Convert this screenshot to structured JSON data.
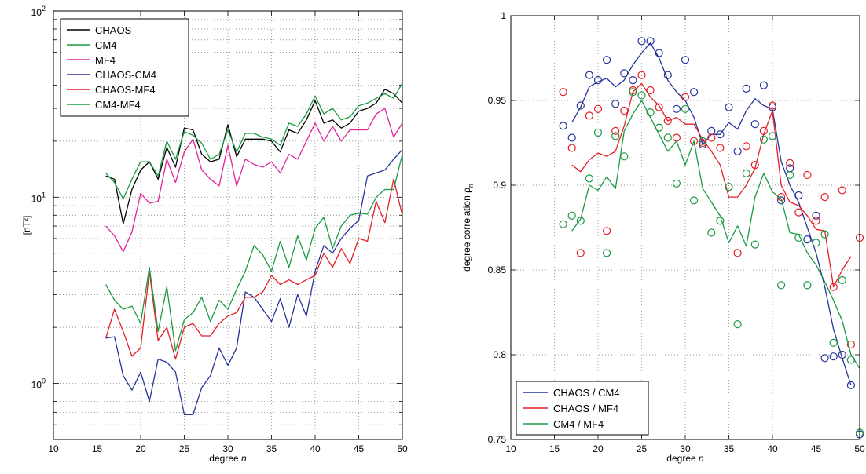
{
  "chart_data": [
    {
      "type": "line",
      "xlabel_prefix": "degree ",
      "xlabel_var": "n",
      "ylabel": "[nT²]",
      "y_scale": "log",
      "xlim": [
        10,
        50
      ],
      "ylim": [
        0.5,
        100
      ],
      "x_ticks": [
        10,
        15,
        20,
        25,
        30,
        35,
        40,
        45,
        50
      ],
      "y_tick_labels": [
        {
          "value": 1,
          "base": "10",
          "exp": "0"
        },
        {
          "value": 10,
          "base": "10",
          "exp": "1"
        },
        {
          "value": 100,
          "base": "10",
          "exp": "2"
        }
      ],
      "grid": true,
      "legend_position": "top-left",
      "x": [
        16,
        17,
        18,
        19,
        20,
        21,
        22,
        23,
        24,
        25,
        26,
        27,
        28,
        29,
        30,
        31,
        32,
        33,
        34,
        35,
        36,
        37,
        38,
        39,
        40,
        41,
        42,
        43,
        44,
        45,
        46,
        47,
        48,
        49,
        50
      ],
      "series": [
        {
          "name": "CHAOS",
          "color": "#000000",
          "values": [
            13,
            12.5,
            7.2,
            11,
            14,
            15.5,
            12.5,
            18.5,
            14.5,
            23.5,
            23,
            17,
            15.5,
            16,
            24.5,
            16.5,
            20.5,
            20.5,
            20.5,
            20,
            17.5,
            23,
            22,
            26,
            33,
            25,
            26,
            23.5,
            25,
            29,
            30,
            32,
            38,
            36,
            32
          ]
        },
        {
          "name": "CM4",
          "color": "#1a9a41",
          "values": [
            13.5,
            12,
            9.8,
            12.5,
            15.5,
            15.5,
            13,
            20,
            16,
            22.5,
            21.5,
            19.5,
            16,
            17,
            23,
            17.5,
            22,
            22,
            21,
            20.5,
            19,
            25,
            24,
            28,
            35,
            28,
            30,
            26,
            27,
            31,
            32,
            34,
            36,
            34,
            41
          ]
        },
        {
          "name": "MF4",
          "color": "#e0239a",
          "values": [
            7,
            6.2,
            5.1,
            6.5,
            10.5,
            9.3,
            9.5,
            16,
            12,
            17.5,
            20.5,
            14,
            12.5,
            11.5,
            19,
            11.5,
            16,
            15,
            14.5,
            15.5,
            13.5,
            17,
            16,
            20,
            25,
            20,
            24,
            20,
            23,
            23,
            23,
            28,
            30,
            21,
            25
          ]
        },
        {
          "name": "CHAOS-CM4",
          "color": "#27339a",
          "values": [
            1.75,
            1.78,
            1.1,
            0.92,
            1.15,
            0.8,
            1.35,
            1.3,
            1.15,
            0.68,
            0.68,
            0.95,
            1.1,
            1.55,
            1.25,
            1.55,
            3.1,
            2.9,
            2.5,
            2.15,
            2.85,
            2,
            3,
            2.3,
            4,
            5.5,
            5,
            6,
            6.8,
            7.5,
            13,
            13.5,
            14,
            16,
            18
          ]
        },
        {
          "name": "CHAOS-MF4",
          "color": "#e41f26",
          "values": [
            1.75,
            2.5,
            1.9,
            1.4,
            1.55,
            4,
            1.7,
            2,
            1.35,
            2,
            2.1,
            1.8,
            1.8,
            2.1,
            2.3,
            2.4,
            2.9,
            2.9,
            3.1,
            3.8,
            3.4,
            3.6,
            3.4,
            3.6,
            3.8,
            5,
            4.2,
            5.3,
            4.4,
            6,
            5.8,
            9.5,
            7.3,
            12.5,
            8
          ]
        },
        {
          "name": "CM4-MF4",
          "color": "#1a9a41",
          "values": [
            3.4,
            2.8,
            2.5,
            2.6,
            2.1,
            4.2,
            1.9,
            3.3,
            1.5,
            2.2,
            2.4,
            2.9,
            2.15,
            2.8,
            2.5,
            3.2,
            4,
            5.5,
            4.9,
            4,
            5.8,
            4.2,
            6.2,
            4.6,
            6.8,
            7.8,
            5.3,
            7,
            8,
            8.2,
            8.1,
            10,
            11,
            11,
            17
          ]
        }
      ]
    },
    {
      "type": "line",
      "xlabel_prefix": "degree ",
      "xlabel_var": "n",
      "ylabel": "degree correlation ρn",
      "ylabel_main": "degree correlation ρ",
      "ylabel_sub": "n",
      "xlim": [
        10,
        50
      ],
      "ylim": [
        0.75,
        1
      ],
      "x_ticks": [
        10,
        15,
        20,
        25,
        30,
        35,
        40,
        45,
        50
      ],
      "y_ticks": [
        "0.75",
        "0.8",
        "0.85",
        "0.9",
        "0.95",
        "1"
      ],
      "grid": true,
      "legend_position": "bottom-left",
      "series": [
        {
          "name": "CHAOS / CM4",
          "color": "#27339a",
          "x": [
            17,
            18,
            19,
            20,
            21,
            22,
            23,
            24,
            25,
            26,
            27,
            28,
            29,
            30,
            31,
            32,
            33,
            34,
            35,
            36,
            37,
            38,
            39,
            40,
            41,
            42,
            43,
            44,
            45,
            46,
            47,
            48,
            49
          ],
          "line": [
            0.937,
            0.946,
            0.958,
            0.961,
            0.963,
            0.958,
            0.962,
            0.971,
            0.978,
            0.984,
            0.975,
            0.962,
            0.955,
            0.95,
            0.94,
            0.924,
            0.93,
            0.93,
            0.937,
            0.933,
            0.944,
            0.951,
            0.947,
            0.945,
            0.914,
            0.9,
            0.89,
            0.875,
            0.86,
            0.84,
            0.815,
            0.798,
            0.782
          ],
          "markers_x": [
            16,
            17,
            18,
            19,
            20,
            21,
            22,
            23,
            24,
            25,
            26,
            27,
            28,
            29,
            30,
            31,
            32,
            33,
            34,
            35,
            36,
            37,
            38,
            39,
            40,
            41,
            42,
            43,
            44,
            45,
            46,
            47,
            48,
            49,
            50
          ],
          "markers": [
            0.935,
            0.928,
            0.947,
            0.965,
            0.962,
            0.974,
            0.948,
            0.966,
            0.962,
            0.985,
            0.985,
            0.978,
            0.965,
            0.945,
            0.974,
            0.955,
            0.924,
            0.932,
            0.93,
            0.946,
            0.92,
            0.957,
            0.936,
            0.959,
            0.946,
            0.891,
            0.91,
            0.894,
            0.868,
            0.882,
            0.798,
            0.799,
            0.8,
            0.782,
            0.753
          ]
        },
        {
          "name": "CHAOS / MF4",
          "color": "#e41f26",
          "x": [
            17,
            18,
            19,
            20,
            21,
            22,
            23,
            24,
            25,
            26,
            27,
            28,
            29,
            30,
            31,
            32,
            33,
            34,
            35,
            36,
            37,
            38,
            39,
            40,
            41,
            42,
            43,
            44,
            45,
            46,
            47,
            48,
            49
          ],
          "line": [
            0.912,
            0.908,
            0.915,
            0.919,
            0.917,
            0.92,
            0.935,
            0.955,
            0.96,
            0.952,
            0.947,
            0.938,
            0.94,
            0.936,
            0.936,
            0.927,
            0.92,
            0.912,
            0.893,
            0.893,
            0.9,
            0.91,
            0.93,
            0.944,
            0.9,
            0.89,
            0.888,
            0.882,
            0.874,
            0.873,
            0.84,
            0.85,
            0.858
          ],
          "markers_x": [
            16,
            17,
            18,
            19,
            20,
            21,
            22,
            23,
            24,
            25,
            26,
            27,
            28,
            29,
            30,
            31,
            32,
            33,
            34,
            35,
            36,
            37,
            38,
            39,
            40,
            41,
            42,
            43,
            44,
            45,
            46,
            47,
            48,
            49,
            50
          ],
          "markers": [
            0.955,
            0.922,
            0.86,
            0.941,
            0.945,
            0.873,
            0.932,
            0.944,
            0.956,
            0.965,
            0.956,
            0.946,
            0.938,
            0.928,
            0.952,
            0.926,
            0.925,
            0.928,
            0.922,
            0.899,
            0.86,
            0.923,
            0.912,
            0.932,
            0.947,
            0.893,
            0.913,
            0.884,
            0.906,
            0.879,
            0.893,
            0.84,
            0.897,
            0.806,
            0.869
          ]
        },
        {
          "name": "CM4 / MF4",
          "color": "#1a9a41",
          "x": [
            17,
            18,
            19,
            20,
            21,
            22,
            23,
            24,
            25,
            26,
            27,
            28,
            29,
            30,
            31,
            32,
            33,
            34,
            35,
            36,
            37,
            38,
            39,
            40,
            41,
            42,
            43,
            44,
            45,
            46,
            47,
            48,
            49,
            50
          ],
          "line": [
            0.873,
            0.88,
            0.9,
            0.897,
            0.905,
            0.898,
            0.932,
            0.942,
            0.95,
            0.94,
            0.93,
            0.92,
            0.926,
            0.912,
            0.926,
            0.898,
            0.89,
            0.882,
            0.866,
            0.876,
            0.864,
            0.893,
            0.907,
            0.896,
            0.892,
            0.872,
            0.871,
            0.86,
            0.853,
            0.843,
            0.832,
            0.82,
            0.8,
            0.792
          ],
          "markers_x": [
            16,
            17,
            18,
            19,
            20,
            21,
            22,
            23,
            24,
            25,
            26,
            27,
            28,
            29,
            30,
            31,
            32,
            33,
            34,
            35,
            36,
            37,
            38,
            39,
            40,
            41,
            42,
            43,
            44,
            45,
            46,
            47,
            48,
            49,
            50
          ],
          "markers": [
            0.877,
            0.882,
            0.879,
            0.904,
            0.931,
            0.86,
            0.929,
            0.917,
            0.955,
            0.953,
            0.943,
            0.934,
            0.928,
            0.901,
            0.945,
            0.891,
            0.926,
            0.872,
            0.879,
            0.899,
            0.818,
            0.907,
            0.865,
            0.927,
            0.929,
            0.841,
            0.906,
            0.869,
            0.841,
            0.866,
            0.871,
            0.807,
            0.844,
            0.797,
            0.754
          ]
        }
      ]
    }
  ]
}
